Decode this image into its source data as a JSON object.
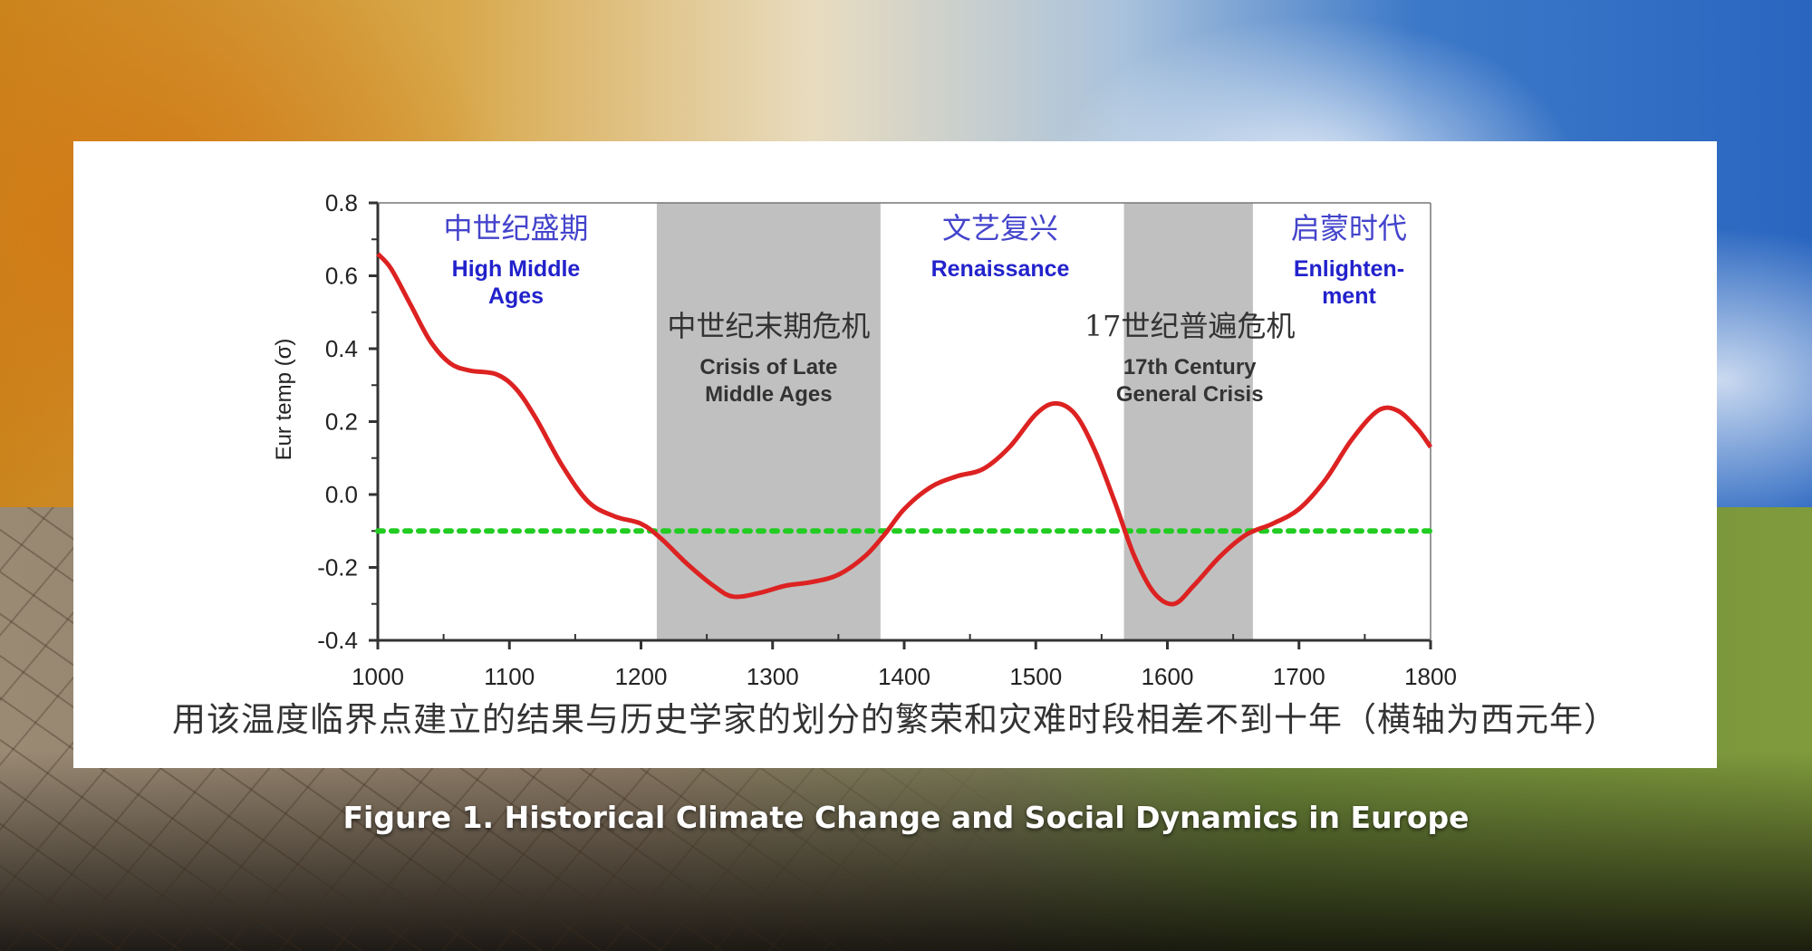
{
  "figure_title": "Figure 1. Historical Climate Change and Social Dynamics in Europe",
  "panel_caption": "用该温度临界点建立的结果与历史学家的划分的繁荣和灾难时段相差不到十年（横轴为西元年）",
  "colors": {
    "curve": "#dd2222",
    "threshold": "#22cc22",
    "crisis_band": "#c0c0c0",
    "era_blue": "#2222cc"
  },
  "chart_data": {
    "type": "line",
    "title": "",
    "xlabel": "",
    "ylabel": "Eur temp (σ)",
    "xlim": [
      1000,
      1800
    ],
    "ylim": [
      -0.4,
      0.8
    ],
    "x_ticks": [
      "1000",
      "1100",
      "1200",
      "1300",
      "1400",
      "1500",
      "1600",
      "1700",
      "1800"
    ],
    "y_ticks": [
      "0.8",
      "0.6",
      "0.4",
      "0.2",
      "0.0",
      "-0.2",
      "-0.4"
    ],
    "series": [
      {
        "x": [
          1000,
          1010,
          1025,
          1040,
          1055,
          1070,
          1090,
          1105,
          1120,
          1140,
          1160,
          1180,
          1200,
          1215,
          1235,
          1255,
          1270,
          1290,
          1310,
          1330,
          1350,
          1370,
          1385,
          1400,
          1420,
          1440,
          1460,
          1480,
          1500,
          1515,
          1530,
          1545,
          1560,
          1575,
          1590,
          1605,
          1620,
          1640,
          1660,
          1680,
          1700,
          1720,
          1740,
          1760,
          1775,
          1790,
          1800
        ],
        "y": [
          0.66,
          0.62,
          0.52,
          0.42,
          0.36,
          0.34,
          0.33,
          0.29,
          0.21,
          0.08,
          -0.02,
          -0.06,
          -0.08,
          -0.12,
          -0.19,
          -0.25,
          -0.28,
          -0.27,
          -0.25,
          -0.24,
          -0.22,
          -0.17,
          -0.11,
          -0.04,
          0.02,
          0.05,
          0.07,
          0.13,
          0.22,
          0.25,
          0.22,
          0.12,
          -0.02,
          -0.17,
          -0.27,
          -0.3,
          -0.25,
          -0.17,
          -0.11,
          -0.08,
          -0.04,
          0.04,
          0.15,
          0.23,
          0.23,
          0.18,
          0.13
        ]
      }
    ],
    "threshold": -0.1,
    "crisis_bands": [
      {
        "start": 1212,
        "end": 1382
      },
      {
        "start": 1567,
        "end": 1665
      }
    ],
    "annotations": [
      {
        "cn": "中世纪盛期",
        "en": [
          "High Middle",
          "Ages"
        ],
        "x": 1105,
        "style": "blue"
      },
      {
        "cn": "文艺复兴",
        "en": [
          "Renaissance"
        ],
        "x": 1473,
        "style": "blue"
      },
      {
        "cn": "启蒙时代",
        "en": [
          "Enlighten-",
          "ment"
        ],
        "x": 1738,
        "style": "blue"
      },
      {
        "cn": "中世纪末期危机",
        "en": [
          "Crisis of Late",
          "Middle Ages"
        ],
        "x": 1297,
        "style": "dark"
      },
      {
        "cn": "17世纪普遍危机",
        "en": [
          "17th Century",
          "General Crisis"
        ],
        "x": 1617,
        "style": "dark"
      }
    ]
  }
}
